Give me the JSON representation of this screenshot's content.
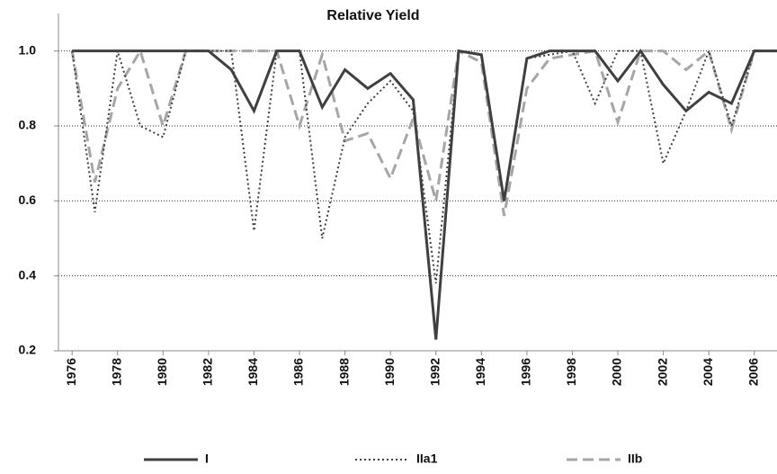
{
  "chart_data": {
    "type": "line",
    "title": "Relative Yield",
    "x": [
      1976,
      1977,
      1978,
      1979,
      1980,
      1981,
      1982,
      1983,
      1984,
      1985,
      1986,
      1987,
      1988,
      1989,
      1990,
      1991,
      1992,
      1993,
      1994,
      1995,
      1996,
      1997,
      1998,
      1999,
      2000,
      2001,
      2002,
      2003,
      2004,
      2005,
      2006,
      2007
    ],
    "xlim": [
      1975.4,
      2007
    ],
    "xticks": [
      1976,
      1978,
      1980,
      1982,
      1984,
      1986,
      1988,
      1990,
      1992,
      1994,
      1996,
      1998,
      2000,
      2002,
      2004,
      2006
    ],
    "ylim": [
      0.2,
      1.1
    ],
    "yticks": [
      0.2,
      0.4,
      0.6,
      0.8,
      {
        "value": 1,
        "label": "1.0"
      }
    ],
    "grid": true,
    "legend": "bottom",
    "series": [
      {
        "name": "I",
        "color": "#404040",
        "dash": "solid",
        "values": [
          1,
          1,
          1,
          1,
          1,
          1,
          1,
          0.95,
          0.84,
          1,
          1,
          0.85,
          0.95,
          0.9,
          0.94,
          0.87,
          0.23,
          1,
          0.99,
          0.6,
          0.98,
          1,
          1,
          1,
          0.92,
          1,
          0.91,
          0.84,
          0.89,
          0.86,
          1,
          1
        ]
      },
      {
        "name": "IIa1",
        "color": "#404040",
        "dash": "dotted",
        "values": [
          1,
          0.57,
          1,
          0.8,
          0.77,
          1,
          1,
          1,
          0.52,
          1,
          1,
          0.5,
          0.77,
          0.86,
          0.92,
          0.84,
          0.38,
          1,
          0.99,
          0.6,
          0.98,
          0.99,
          1,
          0.86,
          1,
          1,
          0.7,
          0.84,
          1,
          0.8,
          1,
          1
        ]
      },
      {
        "name": "IIb",
        "color": "#a6a6a6",
        "dash": "dashed",
        "values": [
          1,
          0.65,
          0.9,
          1,
          0.8,
          1,
          1,
          1,
          1,
          1,
          0.8,
          0.99,
          0.76,
          0.78,
          0.66,
          0.82,
          0.6,
          1,
          0.97,
          0.56,
          0.9,
          0.98,
          0.99,
          1,
          0.81,
          1,
          1,
          0.95,
          1,
          0.79,
          1,
          1
        ]
      }
    ]
  }
}
